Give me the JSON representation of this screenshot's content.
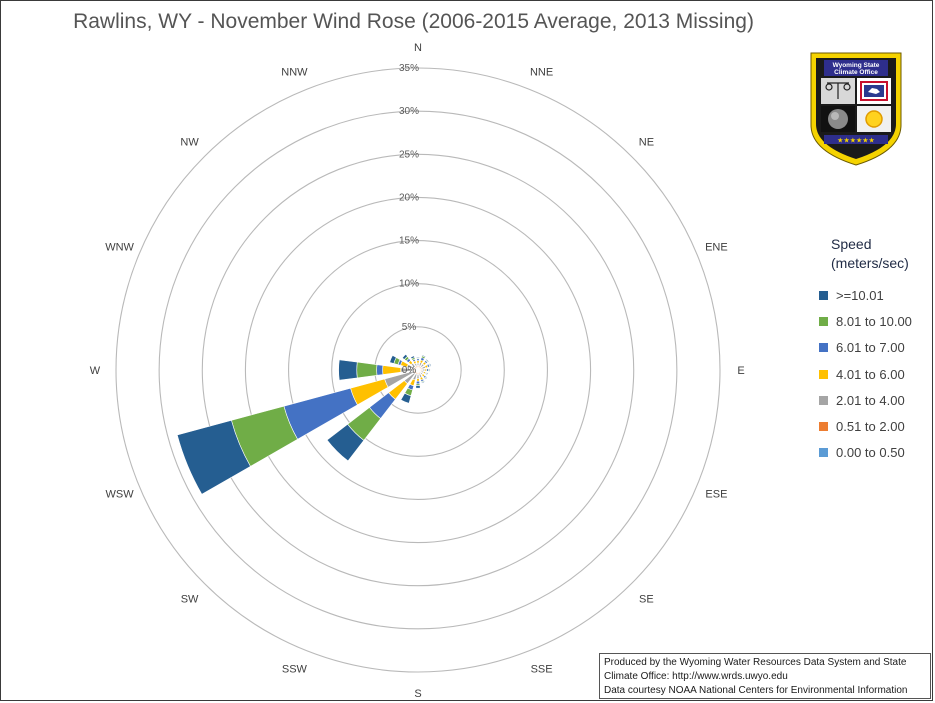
{
  "chart_data": {
    "type": "wind-rose",
    "title": "Rawlins, WY - November Wind Rose (2006-2015 Average, 2013 Missing)",
    "radial_axis": {
      "min": 0,
      "max": 35,
      "ticks": [
        "0%",
        "5%",
        "10%",
        "15%",
        "20%",
        "25%",
        "30%",
        "35%"
      ]
    },
    "directions": [
      "N",
      "NNE",
      "NE",
      "ENE",
      "E",
      "ESE",
      "SE",
      "SSE",
      "S",
      "SSW",
      "SW",
      "WSW",
      "W",
      "WNW",
      "NW",
      "NNW"
    ],
    "legend_title": "Speed (meters/sec)",
    "series": [
      {
        "name": "0.00 to 0.50",
        "color": "#5b9bd5",
        "values": [
          0.1,
          0.1,
          0.1,
          0.1,
          0.1,
          0.1,
          0.1,
          0.1,
          0.1,
          0.1,
          0.1,
          0.1,
          0.1,
          0.1,
          0.1,
          0.1
        ]
      },
      {
        "name": "0.51 to 2.00",
        "color": "#ed7d31",
        "values": [
          0.4,
          0.4,
          0.4,
          0.4,
          0.4,
          0.3,
          0.3,
          0.4,
          0.4,
          0.4,
          0.4,
          0.4,
          0.4,
          0.4,
          0.4,
          0.4
        ]
      },
      {
        "name": "2.01 to 4.00",
        "color": "#a5a5a5",
        "values": [
          0.3,
          0.4,
          0.4,
          0.4,
          0.3,
          0.3,
          0.3,
          0.4,
          0.5,
          0.7,
          1.5,
          3.5,
          1.5,
          0.8,
          0.5,
          0.3
        ]
      },
      {
        "name": "4.01 to 6.00",
        "color": "#ffc000",
        "values": [
          0.3,
          0.3,
          0.3,
          0.3,
          0.2,
          0.2,
          0.3,
          0.3,
          0.3,
          0.7,
          2.3,
          4.1,
          2.1,
          0.8,
          0.4,
          0.3
        ]
      },
      {
        "name": "6.01 to 7.00",
        "color": "#4472c4",
        "values": [
          0.2,
          0.3,
          0.2,
          0.2,
          0.2,
          0.1,
          0.2,
          0.2,
          0.3,
          0.5,
          2.8,
          8.0,
          0.7,
          0.3,
          0.3,
          0.2
        ]
      },
      {
        "name": "8.01 to 10.00",
        "color": "#70ad47",
        "values": [
          0.1,
          0.2,
          0.1,
          0.1,
          0.1,
          0.1,
          0.1,
          0.1,
          0.2,
          0.7,
          3.2,
          6.3,
          2.3,
          0.5,
          0.3,
          0.2
        ]
      },
      {
        "name": ">=10.01",
        "color": "#255e91",
        "values": [
          0.1,
          0.1,
          0.1,
          0.1,
          0.1,
          0.1,
          0.1,
          0.1,
          0.3,
          0.9,
          3.0,
          6.5,
          2.1,
          0.5,
          0.3,
          0.2
        ]
      }
    ],
    "legend_order": [
      ">=10.01",
      "8.01 to 10.00",
      "6.01 to 7.00",
      "4.01 to 6.00",
      "2.01 to 4.00",
      "0.51 to 2.00",
      "0.00 to 0.50"
    ],
    "legend_placement": "right",
    "grid": true
  },
  "credit": {
    "line1": "Produced by the Wyoming Water Resources Data System and State",
    "line2": "Climate Office: http://www.wrds.uwyo.edu",
    "line3": "Data courtesy NOAA National Centers for Environmental Information"
  },
  "logo": {
    "text_line1": "Wyoming State",
    "text_line2": "Climate Office",
    "colors": {
      "shield": "#1a1a1a",
      "border": "#f5d300",
      "banner": "#2e2e8c",
      "flag": "#2b3a8f",
      "sun": "#ffd21f"
    }
  }
}
